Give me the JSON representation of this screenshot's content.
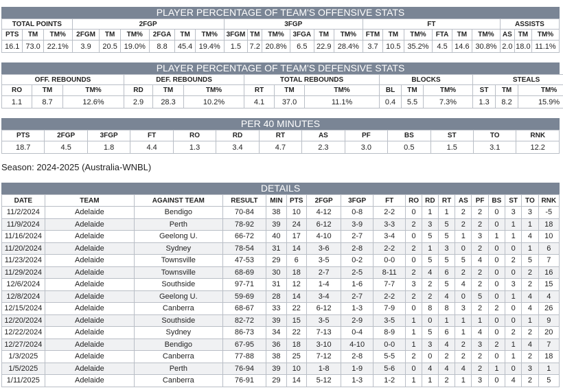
{
  "offensive": {
    "title": "PLAYER PERCENTAGE OF TEAM'S OFFENSIVE STATS",
    "groups": [
      {
        "label": "TOTAL POINTS",
        "span": 3
      },
      {
        "label": "2FGP",
        "span": 6
      },
      {
        "label": "3FGP",
        "span": 6
      },
      {
        "label": "FT",
        "span": 6
      },
      {
        "label": "ASSISTS",
        "span": 3
      }
    ],
    "columns": [
      "PTS",
      "TM",
      "TM%",
      "2FGM",
      "TM",
      "TM%",
      "2FGA",
      "TM",
      "TM%",
      "3FGM",
      "TM",
      "TM%",
      "3FGA",
      "TM",
      "TM%",
      "FTM",
      "TM",
      "TM%",
      "FTA",
      "TM",
      "TM%",
      "AS",
      "TM",
      "TM%"
    ],
    "values": [
      "16.1",
      "73.0",
      "22.1%",
      "3.9",
      "20.5",
      "19.0%",
      "8.8",
      "45.4",
      "19.4%",
      "1.5",
      "7.2",
      "20.8%",
      "6.5",
      "22.9",
      "28.4%",
      "3.7",
      "10.5",
      "35.2%",
      "4.5",
      "14.6",
      "30.8%",
      "2.0",
      "18.0",
      "11.1%"
    ]
  },
  "defensive": {
    "title": "PLAYER PERCENTAGE OF TEAM'S DEFENSIVE STATS",
    "groups": [
      {
        "label": "OFF. REBOUNDS",
        "span": 3
      },
      {
        "label": "DEF. REBOUNDS",
        "span": 3
      },
      {
        "label": "TOTAL REBOUNDS",
        "span": 3
      },
      {
        "label": "BLOCKS",
        "span": 3
      },
      {
        "label": "STEALS",
        "span": 3
      }
    ],
    "columns": [
      "RO",
      "TM",
      "TM%",
      "RD",
      "TM",
      "TM%",
      "RT",
      "TM",
      "TM%",
      "BL",
      "TM",
      "TM%",
      "ST",
      "TM",
      "TM%"
    ],
    "values": [
      "1.1",
      "8.7",
      "12.6%",
      "2.9",
      "28.3",
      "10.2%",
      "4.1",
      "37.0",
      "11.1%",
      "0.4",
      "5.5",
      "7.3%",
      "1.3",
      "8.2",
      "15.9%"
    ]
  },
  "per40": {
    "title": "PER 40 MINUTES",
    "columns": [
      "PTS",
      "2FGP",
      "3FGP",
      "FT",
      "RO",
      "RD",
      "RT",
      "AS",
      "PF",
      "BS",
      "ST",
      "TO",
      "RNK"
    ],
    "values": [
      "18.7",
      "4.5",
      "1.8",
      "4.4",
      "1.3",
      "3.4",
      "4.7",
      "2.3",
      "3.0",
      "0.5",
      "1.5",
      "3.1",
      "12.2"
    ]
  },
  "season": "Season: 2024-2025 (Australia-WNBL)",
  "details": {
    "title": "DETAILS",
    "columns": [
      "DATE",
      "TEAM",
      "AGAINST TEAM",
      "RESULT",
      "MIN",
      "PTS",
      "2FGP",
      "3FGP",
      "FT",
      "RO",
      "RD",
      "RT",
      "AS",
      "PF",
      "BS",
      "ST",
      "TO",
      "RNK"
    ],
    "rows": [
      [
        "11/2/2024",
        "Adelaide",
        "Bendigo",
        "70-84",
        "38",
        "10",
        "4-12",
        "0-8",
        "2-2",
        "0",
        "1",
        "1",
        "2",
        "2",
        "0",
        "3",
        "3",
        "-5"
      ],
      [
        "11/9/2024",
        "Adelaide",
        "Perth",
        "78-92",
        "39",
        "24",
        "6-12",
        "3-9",
        "3-3",
        "2",
        "3",
        "5",
        "2",
        "2",
        "0",
        "1",
        "1",
        "18"
      ],
      [
        "11/16/2024",
        "Adelaide",
        "Geelong U.",
        "66-72",
        "40",
        "17",
        "4-10",
        "2-7",
        "3-4",
        "0",
        "5",
        "5",
        "1",
        "3",
        "1",
        "1",
        "4",
        "10"
      ],
      [
        "11/20/2024",
        "Adelaide",
        "Sydney",
        "78-54",
        "31",
        "14",
        "3-6",
        "2-8",
        "2-2",
        "2",
        "1",
        "3",
        "0",
        "2",
        "0",
        "0",
        "1",
        "6"
      ],
      [
        "11/23/2024",
        "Adelaide",
        "Townsville",
        "47-53",
        "29",
        "6",
        "3-5",
        "0-2",
        "0-0",
        "0",
        "5",
        "5",
        "5",
        "4",
        "0",
        "2",
        "5",
        "7"
      ],
      [
        "11/29/2024",
        "Adelaide",
        "Townsville",
        "68-69",
        "30",
        "18",
        "2-7",
        "2-5",
        "8-11",
        "2",
        "4",
        "6",
        "2",
        "2",
        "0",
        "0",
        "2",
        "16"
      ],
      [
        "12/6/2024",
        "Adelaide",
        "Southside",
        "97-71",
        "31",
        "12",
        "1-4",
        "1-6",
        "7-7",
        "3",
        "2",
        "5",
        "4",
        "2",
        "0",
        "3",
        "2",
        "15"
      ],
      [
        "12/8/2024",
        "Adelaide",
        "Geelong U.",
        "59-69",
        "28",
        "14",
        "3-4",
        "2-7",
        "2-2",
        "2",
        "2",
        "4",
        "0",
        "5",
        "0",
        "1",
        "4",
        "4"
      ],
      [
        "12/15/2024",
        "Adelaide",
        "Canberra",
        "68-67",
        "33",
        "22",
        "6-12",
        "1-3",
        "7-9",
        "0",
        "8",
        "8",
        "3",
        "2",
        "2",
        "0",
        "4",
        "26"
      ],
      [
        "12/20/2024",
        "Adelaide",
        "Southside",
        "82-72",
        "39",
        "15",
        "3-5",
        "2-9",
        "3-5",
        "1",
        "0",
        "1",
        "1",
        "1",
        "0",
        "0",
        "1",
        "9"
      ],
      [
        "12/22/2024",
        "Adelaide",
        "Sydney",
        "86-73",
        "34",
        "22",
        "7-13",
        "0-4",
        "8-9",
        "1",
        "5",
        "6",
        "1",
        "4",
        "0",
        "2",
        "2",
        "20"
      ],
      [
        "12/27/2024",
        "Adelaide",
        "Bendigo",
        "67-95",
        "36",
        "18",
        "3-10",
        "4-10",
        "0-0",
        "1",
        "3",
        "4",
        "2",
        "3",
        "2",
        "1",
        "4",
        "7"
      ],
      [
        "1/3/2025",
        "Adelaide",
        "Canberra",
        "77-88",
        "38",
        "25",
        "7-12",
        "2-8",
        "5-5",
        "2",
        "0",
        "2",
        "2",
        "2",
        "0",
        "1",
        "2",
        "18"
      ],
      [
        "1/5/2025",
        "Adelaide",
        "Perth",
        "76-94",
        "39",
        "10",
        "1-8",
        "1-9",
        "5-6",
        "0",
        "4",
        "4",
        "4",
        "2",
        "1",
        "0",
        "3",
        "1"
      ],
      [
        "1/11/2025",
        "Adelaide",
        "Canberra",
        "76-91",
        "29",
        "14",
        "5-12",
        "1-3",
        "1-2",
        "1",
        "1",
        "2",
        "1",
        "3",
        "0",
        "4",
        "2",
        "5"
      ]
    ]
  }
}
